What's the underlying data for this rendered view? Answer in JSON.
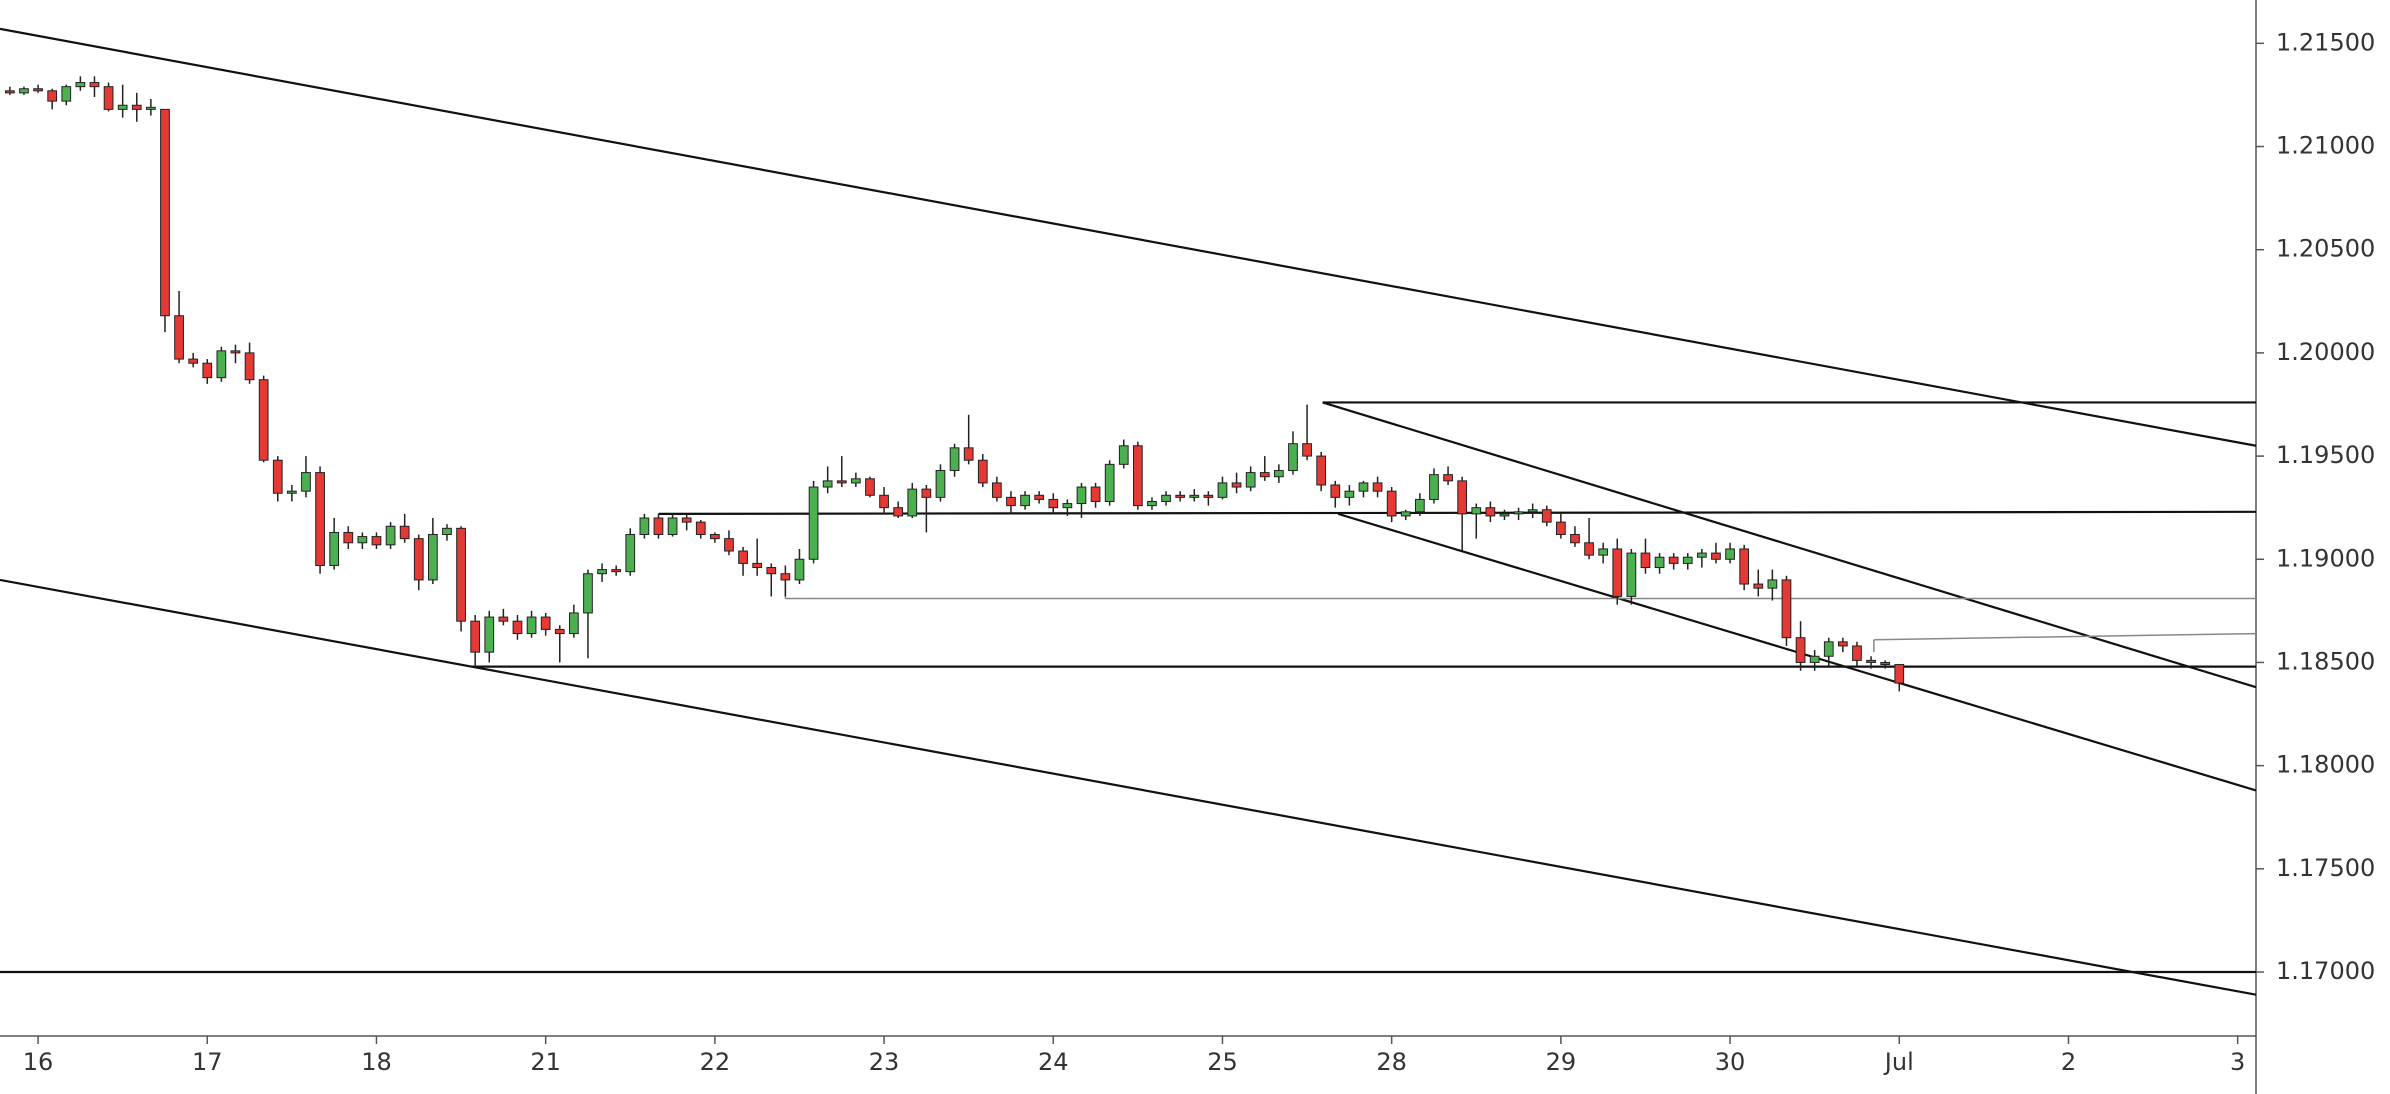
{
  "chart_data": {
    "type": "candlestick",
    "up_color": "#4caf50",
    "down_color": "#e53935",
    "x": [
      -2,
      -1,
      0,
      1,
      2,
      3,
      4,
      5,
      6,
      7,
      8,
      9,
      10,
      11,
      12,
      13,
      14,
      15,
      16,
      17,
      18,
      19,
      20,
      21,
      22,
      23,
      24,
      25,
      26,
      27,
      28,
      29,
      30,
      31,
      32,
      33,
      34,
      35,
      36,
      37,
      38,
      39,
      40,
      41,
      42,
      43,
      44,
      45,
      46,
      47,
      48,
      49,
      50,
      51,
      52,
      53,
      54,
      55,
      56,
      57,
      58,
      59,
      60,
      61,
      62,
      63,
      64,
      65,
      66,
      67,
      68,
      69,
      70,
      71,
      72,
      73,
      74,
      75,
      76,
      77,
      78,
      79,
      80,
      81,
      82,
      83,
      84,
      85,
      86,
      87,
      88,
      89,
      90,
      91,
      92,
      93,
      94,
      95,
      96,
      97,
      98,
      99,
      100,
      101,
      102,
      103,
      104,
      105,
      106,
      107,
      108,
      109,
      110,
      111,
      112,
      113,
      114,
      115,
      116,
      117,
      118,
      119,
      120,
      121,
      122,
      123,
      124,
      125,
      126,
      127,
      128,
      129,
      130,
      131,
      132
    ],
    "open": [
      1.2127,
      1.2126,
      1.2128,
      1.2127,
      1.2122,
      1.2129,
      1.2131,
      1.2129,
      1.2118,
      1.212,
      1.2118,
      1.2118,
      1.2018,
      1.1997,
      1.1995,
      1.1988,
      1.2001,
      1.2,
      1.1987,
      1.1948,
      1.1932,
      1.1933,
      1.1942,
      1.1897,
      1.1913,
      1.1908,
      1.1911,
      1.1907,
      1.1916,
      1.191,
      1.189,
      1.1912,
      1.1915,
      1.187,
      1.1855,
      1.1872,
      1.187,
      1.1864,
      1.1872,
      1.1866,
      1.1864,
      1.1874,
      1.1893,
      1.1895,
      1.1894,
      1.1912,
      1.192,
      1.1912,
      1.192,
      1.1918,
      1.1912,
      1.191,
      1.1904,
      1.1898,
      1.1896,
      1.1893,
      1.189,
      1.19,
      1.1935,
      1.1938,
      1.1937,
      1.1939,
      1.1931,
      1.1925,
      1.1921,
      1.1934,
      1.193,
      1.1943,
      1.1954,
      1.1948,
      1.1937,
      1.193,
      1.1926,
      1.1931,
      1.1929,
      1.1925,
      1.1927,
      1.1935,
      1.1928,
      1.1946,
      1.1955,
      1.1926,
      1.1928,
      1.1931,
      1.193,
      1.1931,
      1.193,
      1.1937,
      1.1935,
      1.1942,
      1.194,
      1.1943,
      1.1956,
      1.195,
      1.1936,
      1.193,
      1.1933,
      1.1937,
      1.1933,
      1.1921,
      1.1923,
      1.1929,
      1.1941,
      1.1938,
      1.1922,
      1.1925,
      1.1921,
      1.1922,
      1.1923,
      1.1924,
      1.1918,
      1.1912,
      1.1908,
      1.1902,
      1.1905,
      1.1882,
      1.1903,
      1.1896,
      1.1901,
      1.1898,
      1.1901,
      1.1903,
      1.19,
      1.1905,
      1.1888,
      1.1886,
      1.189,
      1.1862,
      1.185,
      1.1853,
      1.186,
      1.1858,
      1.1851,
      1.185,
      1.1849
    ],
    "high": [
      1.2129,
      1.2129,
      1.213,
      1.2128,
      1.213,
      1.2134,
      1.2134,
      1.2131,
      1.213,
      1.2126,
      1.2123,
      1.2118,
      1.203,
      1.2,
      1.1997,
      1.2003,
      1.2004,
      1.2005,
      1.1989,
      1.195,
      1.1936,
      1.195,
      1.1945,
      1.192,
      1.1916,
      1.1913,
      1.1913,
      1.1918,
      1.1922,
      1.1912,
      1.192,
      1.1917,
      1.1916,
      1.1873,
      1.1875,
      1.1876,
      1.1873,
      1.1875,
      1.1874,
      1.1868,
      1.1878,
      1.1895,
      1.1898,
      1.1897,
      1.1915,
      1.1922,
      1.1922,
      1.1922,
      1.1922,
      1.1919,
      1.1913,
      1.1914,
      1.1906,
      1.191,
      1.1898,
      1.1897,
      1.1905,
      1.1938,
      1.1945,
      1.195,
      1.1942,
      1.194,
      1.1935,
      1.1928,
      1.1937,
      1.1936,
      1.1946,
      1.1956,
      1.197,
      1.1951,
      1.194,
      1.1933,
      1.1933,
      1.1933,
      1.1932,
      1.1929,
      1.1937,
      1.1937,
      1.1948,
      1.1958,
      1.1957,
      1.193,
      1.1933,
      1.1933,
      1.1934,
      1.1933,
      1.194,
      1.1942,
      1.1945,
      1.195,
      1.1946,
      1.1962,
      1.1975,
      1.1952,
      1.1938,
      1.1936,
      1.1938,
      1.194,
      1.1935,
      1.1924,
      1.1932,
      1.1944,
      1.1945,
      1.194,
      1.1927,
      1.1928,
      1.1924,
      1.1925,
      1.1927,
      1.1926,
      1.1922,
      1.1916,
      1.192,
      1.1908,
      1.191,
      1.1905,
      1.191,
      1.1903,
      1.1903,
      1.1903,
      1.1905,
      1.1908,
      1.1908,
      1.1907,
      1.1895,
      1.1895,
      1.1892,
      1.187,
      1.1856,
      1.1862,
      1.1862,
      1.186,
      1.1853,
      1.1851,
      1.1849
    ],
    "low": [
      1.2125,
      1.2125,
      1.2126,
      1.2118,
      1.212,
      1.2127,
      1.2124,
      1.2117,
      1.2114,
      1.2112,
      1.2115,
      1.201,
      1.1995,
      1.1993,
      1.1985,
      1.1986,
      1.1995,
      1.1985,
      1.1947,
      1.1928,
      1.1928,
      1.193,
      1.1893,
      1.1895,
      1.1905,
      1.1905,
      1.1905,
      1.1905,
      1.1908,
      1.1885,
      1.1888,
      1.1909,
      1.1865,
      1.1848,
      1.185,
      1.1868,
      1.1861,
      1.1862,
      1.1863,
      1.185,
      1.1862,
      1.1852,
      1.1889,
      1.1892,
      1.1892,
      1.191,
      1.191,
      1.1911,
      1.1914,
      1.191,
      1.1908,
      1.1902,
      1.1892,
      1.1892,
      1.1882,
      1.1882,
      1.1888,
      1.1898,
      1.1932,
      1.1935,
      1.1935,
      1.193,
      1.1922,
      1.192,
      1.192,
      1.1913,
      1.1928,
      1.194,
      1.1946,
      1.1935,
      1.1928,
      1.1922,
      1.1924,
      1.1927,
      1.1922,
      1.1921,
      1.192,
      1.1925,
      1.1926,
      1.1944,
      1.1924,
      1.1924,
      1.1926,
      1.1928,
      1.1928,
      1.1926,
      1.1929,
      1.1932,
      1.1933,
      1.1938,
      1.1937,
      1.1941,
      1.1948,
      1.1933,
      1.1925,
      1.1926,
      1.193,
      1.193,
      1.1918,
      1.1919,
      1.1921,
      1.1927,
      1.1936,
      1.1904,
      1.191,
      1.1918,
      1.1919,
      1.1919,
      1.192,
      1.1916,
      1.191,
      1.1906,
      1.19,
      1.1898,
      1.1878,
      1.1878,
      1.1893,
      1.1893,
      1.1895,
      1.1895,
      1.1896,
      1.1898,
      1.1898,
      1.1885,
      1.1882,
      1.188,
      1.1858,
      1.1846,
      1.1846,
      1.1848,
      1.1855,
      1.1848,
      1.1847,
      1.1847,
      1.1836
    ],
    "close": [
      1.2126,
      1.2128,
      1.2127,
      1.2122,
      1.2129,
      1.2131,
      1.2129,
      1.2118,
      1.212,
      1.2118,
      1.2119,
      1.2018,
      1.1997,
      1.1995,
      1.1988,
      1.2001,
      1.2,
      1.1987,
      1.1948,
      1.1932,
      1.1933,
      1.1942,
      1.1897,
      1.1913,
      1.1908,
      1.1911,
      1.1907,
      1.1916,
      1.191,
      1.189,
      1.1912,
      1.1915,
      1.187,
      1.1855,
      1.1872,
      1.187,
      1.1864,
      1.1872,
      1.1866,
      1.1864,
      1.1874,
      1.1893,
      1.1895,
      1.1894,
      1.1912,
      1.192,
      1.1912,
      1.192,
      1.1918,
      1.1912,
      1.191,
      1.1904,
      1.1898,
      1.1896,
      1.1893,
      1.189,
      1.19,
      1.1935,
      1.1938,
      1.1937,
      1.1939,
      1.1931,
      1.1925,
      1.1921,
      1.1934,
      1.193,
      1.1943,
      1.1954,
      1.1948,
      1.1937,
      1.193,
      1.1926,
      1.1931,
      1.1929,
      1.1925,
      1.1927,
      1.1935,
      1.1928,
      1.1946,
      1.1955,
      1.1926,
      1.1928,
      1.1931,
      1.193,
      1.1931,
      1.193,
      1.1937,
      1.1935,
      1.1942,
      1.194,
      1.1943,
      1.1956,
      1.195,
      1.1936,
      1.193,
      1.1933,
      1.1937,
      1.1933,
      1.1921,
      1.1923,
      1.1929,
      1.1941,
      1.1938,
      1.1922,
      1.1925,
      1.1921,
      1.1922,
      1.1923,
      1.1924,
      1.1918,
      1.1912,
      1.1908,
      1.1902,
      1.1905,
      1.1882,
      1.1903,
      1.1896,
      1.1901,
      1.1898,
      1.1901,
      1.1903,
      1.19,
      1.1905,
      1.1888,
      1.1886,
      1.189,
      1.1862,
      1.185,
      1.1853,
      1.186,
      1.1858,
      1.1851,
      1.185,
      1.1849,
      1.184
    ],
    "lines": [
      {
        "x": [
          -2.7,
          157.3
        ],
        "y": [
          1.2157,
          1.1955
        ],
        "color": "#111"
      },
      {
        "x": [
          -2.7,
          157.3
        ],
        "y": [
          1.189,
          1.1689
        ],
        "color": "#111"
      },
      {
        "x": [
          -2.7,
          157.3
        ],
        "y": [
          1.17,
          1.17
        ],
        "color": "#111"
      },
      {
        "x": [
          91.1,
          157.3
        ],
        "y": [
          1.1976,
          1.1976
        ],
        "color": "#111"
      },
      {
        "x": [
          91.1,
          157.3
        ],
        "y": [
          1.1976,
          1.1838
        ],
        "color": "#111"
      },
      {
        "x": [
          44,
          157.3
        ],
        "y": [
          1.1922,
          1.1923
        ],
        "color": "#111"
      },
      {
        "x": [
          92.2,
          157.3
        ],
        "y": [
          1.1922,
          1.1788
        ],
        "color": "#111"
      },
      {
        "x": [
          53,
          157.3
        ],
        "y": [
          1.1881,
          1.1881
        ],
        "color": "#888"
      },
      {
        "x": [
          53,
          53
        ],
        "y": [
          1.189,
          1.1881
        ],
        "color": "#888"
      },
      {
        "x": [
          30.8,
          157.3
        ],
        "y": [
          1.1848,
          1.1848
        ],
        "color": "#111"
      },
      {
        "x": [
          130.2,
          157.3
        ],
        "y": [
          1.1861,
          1.1864
        ],
        "color": "#888"
      },
      {
        "x": [
          130.2,
          130.2
        ],
        "y": [
          1.1861,
          1.1855
        ],
        "color": "#888"
      }
    ],
    "xlim": [
      -2.7,
      157.3
    ],
    "ylim": [
      1.1669,
      1.2171
    ],
    "xticks": [
      {
        "value": 0,
        "label": "16"
      },
      {
        "value": 12,
        "label": "17"
      },
      {
        "value": 24,
        "label": "18"
      },
      {
        "value": 36,
        "label": "21"
      },
      {
        "value": 48,
        "label": "22"
      },
      {
        "value": 60,
        "label": "23"
      },
      {
        "value": 72,
        "label": "24"
      },
      {
        "value": 84,
        "label": "25"
      },
      {
        "value": 96,
        "label": "28"
      },
      {
        "value": 108,
        "label": "29"
      },
      {
        "value": 120,
        "label": "30"
      },
      {
        "value": 132,
        "label": "Jul"
      },
      {
        "value": 144,
        "label": "2"
      },
      {
        "value": 156,
        "label": "3"
      }
    ],
    "yticks": [
      {
        "value": 1.215,
        "label": "1.21500"
      },
      {
        "value": 1.21,
        "label": "1.21000"
      },
      {
        "value": 1.205,
        "label": "1.20500"
      },
      {
        "value": 1.2,
        "label": "1.20000"
      },
      {
        "value": 1.195,
        "label": "1.19500"
      },
      {
        "value": 1.19,
        "label": "1.19000"
      },
      {
        "value": 1.185,
        "label": "1.18500"
      },
      {
        "value": 1.18,
        "label": "1.18000"
      },
      {
        "value": 1.175,
        "label": "1.17500"
      },
      {
        "value": 1.17,
        "label": "1.17000"
      }
    ]
  }
}
